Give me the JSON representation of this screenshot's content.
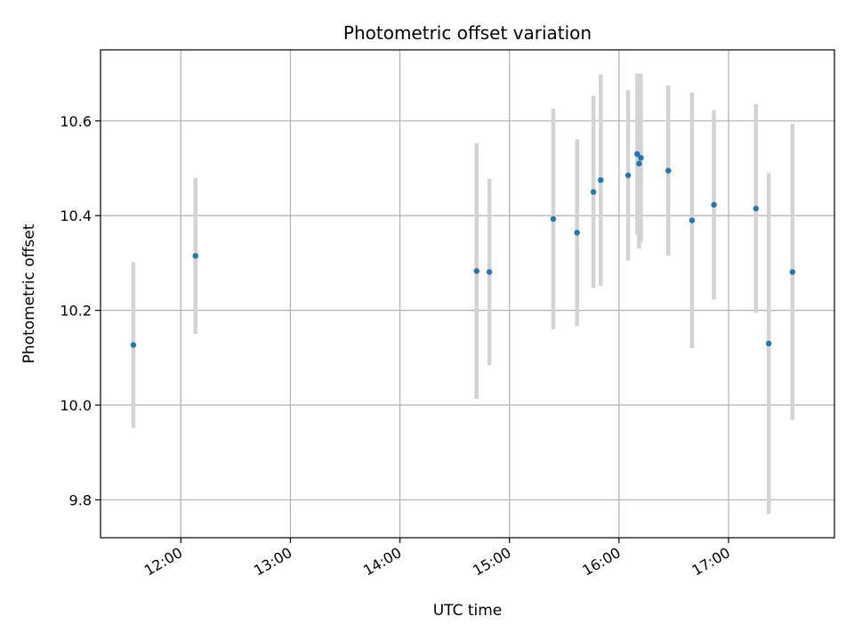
{
  "chart_data": {
    "type": "scatter",
    "title": "Photometric offset variation",
    "xlabel": "UTC time",
    "ylabel": "Photometric offset",
    "x_ticks": [
      "12:00",
      "13:00",
      "14:00",
      "15:00",
      "16:00",
      "17:00"
    ],
    "y_ticks": [
      "9.8",
      "10.0",
      "10.2",
      "10.4",
      "10.6"
    ],
    "xlim": [
      "11:16",
      "17:58"
    ],
    "ylim": [
      9.72,
      10.75
    ],
    "grid": true,
    "series": [
      {
        "marker_color": "#1f77b4",
        "errorbar_color": "#d3d3d3",
        "points": [
          {
            "time": "11:34",
            "y": 10.127,
            "err": 0.175
          },
          {
            "time": "12:08",
            "y": 10.315,
            "err": 0.165
          },
          {
            "time": "14:42",
            "y": 10.283,
            "err": 0.27
          },
          {
            "time": "14:49",
            "y": 10.281,
            "err": 0.197
          },
          {
            "time": "15:24",
            "y": 10.393,
            "err": 0.233
          },
          {
            "time": "15:37",
            "y": 10.364,
            "err": 0.197
          },
          {
            "time": "15:46",
            "y": 10.45,
            "err": 0.203
          },
          {
            "time": "15:50",
            "y": 10.475,
            "err": 0.223
          },
          {
            "time": "16:05",
            "y": 10.485,
            "err": 0.18
          },
          {
            "time": "16:10",
            "y": 10.53,
            "err": 0.17
          },
          {
            "time": "16:11",
            "y": 10.51,
            "err": 0.18
          },
          {
            "time": "16:12",
            "y": 10.522,
            "err": 0.178
          },
          {
            "time": "16:27",
            "y": 10.495,
            "err": 0.18
          },
          {
            "time": "16:40",
            "y": 10.39,
            "err": 0.27
          },
          {
            "time": "16:52",
            "y": 10.423,
            "err": 0.2
          },
          {
            "time": "17:15",
            "y": 10.415,
            "err": 0.22
          },
          {
            "time": "17:22",
            "y": 10.13,
            "err": 0.36
          },
          {
            "time": "17:35",
            "y": 10.281,
            "err": 0.313
          }
        ]
      }
    ]
  }
}
